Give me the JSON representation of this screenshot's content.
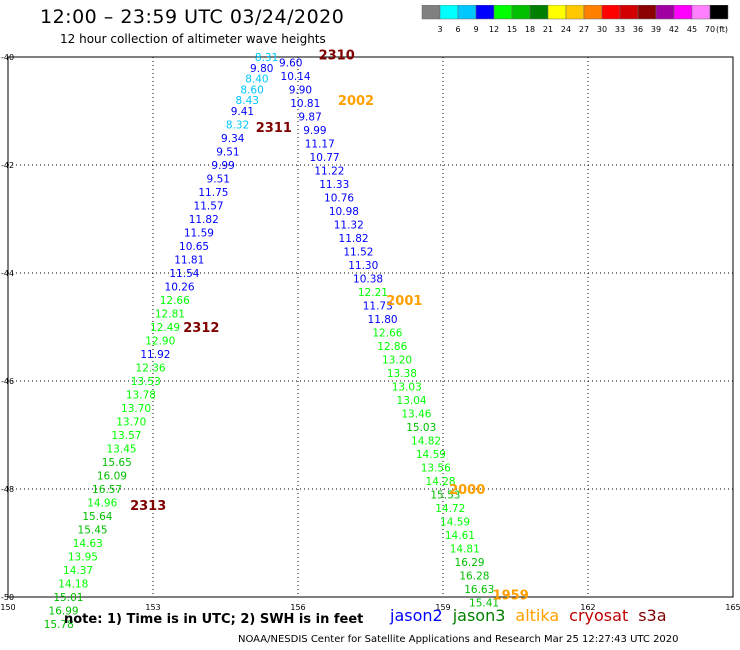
{
  "header": {
    "title": "12:00 – 23:59 UTC 03/24/2020",
    "subtitle": "12 hour collection of altimeter wave heights"
  },
  "colorbar": {
    "unit": "(ft)",
    "labels": [
      "3",
      "6",
      "9",
      "12",
      "15",
      "18",
      "21",
      "24",
      "27",
      "30",
      "33",
      "36",
      "39",
      "42",
      "45",
      "70"
    ],
    "colors": [
      "#808080",
      "#00ffff",
      "#00c8ff",
      "#0000ff",
      "#00ff00",
      "#00c000",
      "#008000",
      "#ffff00",
      "#ffc800",
      "#ff8000",
      "#ff0000",
      "#d20000",
      "#8b0000",
      "#a000a0",
      "#ff00ff",
      "#ff80ff",
      "#000000"
    ]
  },
  "note": "note: 1) Time is in UTC; 2) SWH is in feet",
  "legend": [
    {
      "label": "jason2",
      "color": "#0000ff"
    },
    {
      "label": "jason3",
      "color": "#008000"
    },
    {
      "label": "altika",
      "color": "#ffa000"
    },
    {
      "label": "cryosat",
      "color": "#c00000"
    },
    {
      "label": "s3a",
      "color": "#800000"
    }
  ],
  "footer": "NOAA/NESDIS Center for Satellite Applications and Research   Mar 25 12:27:43 UTC 2020",
  "chart_data": {
    "type": "scatter",
    "x_ticks": [
      "150",
      "153",
      "156",
      "159",
      "162",
      "165"
    ],
    "y_ticks": [
      "-40",
      "-42",
      "-44",
      "-46",
      "-48",
      "-50"
    ],
    "xlim": [
      150,
      165
    ],
    "ylim": [
      -50,
      -40
    ],
    "grid": true,
    "passes": [
      {
        "label": "2310",
        "lon": 156.8,
        "lat": -39.95,
        "color": "#800000"
      },
      {
        "label": "2002",
        "lon": 157.2,
        "lat": -40.8,
        "color": "#ffa000"
      },
      {
        "label": "2311",
        "lon": 155.5,
        "lat": -41.3,
        "color": "#800000"
      },
      {
        "label": "2001",
        "lon": 158.2,
        "lat": -44.5,
        "color": "#ffa000"
      },
      {
        "label": "2312",
        "lon": 154.0,
        "lat": -45.0,
        "color": "#800000"
      },
      {
        "label": "2000",
        "lon": 159.5,
        "lat": -48.0,
        "color": "#ffa000"
      },
      {
        "label": "2313",
        "lon": 152.9,
        "lat": -48.3,
        "color": "#800000"
      },
      {
        "label": "1959",
        "lon": 160.4,
        "lat": -49.95,
        "color": "#ffa000"
      }
    ],
    "series": [
      {
        "track": "left",
        "points": [
          {
            "lon": 155.35,
            "lat": -40.0,
            "swh": "8.31",
            "color": "#00c8ff"
          },
          {
            "lon": 155.25,
            "lat": -40.2,
            "swh": "9.80",
            "color": "#0000ff"
          },
          {
            "lon": 155.15,
            "lat": -40.4,
            "swh": "8.40",
            "color": "#00c8ff"
          },
          {
            "lon": 155.05,
            "lat": -40.6,
            "swh": "8.60",
            "color": "#00c8ff"
          },
          {
            "lon": 154.95,
            "lat": -40.8,
            "swh": "8.43",
            "color": "#00c8ff"
          },
          {
            "lon": 154.85,
            "lat": -41.0,
            "swh": "9.41",
            "color": "#0000ff"
          },
          {
            "lon": 154.75,
            "lat": -41.25,
            "swh": "8.32",
            "color": "#00c8ff"
          },
          {
            "lon": 154.65,
            "lat": -41.5,
            "swh": "9.34",
            "color": "#0000ff"
          },
          {
            "lon": 154.55,
            "lat": -41.75,
            "swh": "9.51",
            "color": "#0000ff"
          },
          {
            "lon": 154.45,
            "lat": -42.0,
            "swh": "9.99",
            "color": "#0000ff"
          },
          {
            "lon": 154.35,
            "lat": -42.25,
            "swh": "9.51",
            "color": "#0000ff"
          },
          {
            "lon": 154.25,
            "lat": -42.5,
            "swh": "11.75",
            "color": "#0000ff"
          },
          {
            "lon": 154.15,
            "lat": -42.75,
            "swh": "11.57",
            "color": "#0000ff"
          },
          {
            "lon": 154.05,
            "lat": -43.0,
            "swh": "11.82",
            "color": "#0000ff"
          },
          {
            "lon": 153.95,
            "lat": -43.25,
            "swh": "11.59",
            "color": "#0000ff"
          },
          {
            "lon": 153.85,
            "lat": -43.5,
            "swh": "10.65",
            "color": "#0000ff"
          },
          {
            "lon": 153.75,
            "lat": -43.75,
            "swh": "11.81",
            "color": "#0000ff"
          },
          {
            "lon": 153.65,
            "lat": -44.0,
            "swh": "11.54",
            "color": "#0000ff"
          },
          {
            "lon": 153.55,
            "lat": -44.25,
            "swh": "10.26",
            "color": "#0000ff"
          },
          {
            "lon": 153.45,
            "lat": -44.5,
            "swh": "12.66",
            "color": "#00ff00"
          },
          {
            "lon": 153.35,
            "lat": -44.75,
            "swh": "12.81",
            "color": "#00ff00"
          },
          {
            "lon": 153.25,
            "lat": -45.0,
            "swh": "12.49",
            "color": "#00ff00"
          },
          {
            "lon": 153.15,
            "lat": -45.25,
            "swh": "12.90",
            "color": "#00ff00"
          },
          {
            "lon": 153.05,
            "lat": -45.5,
            "swh": "11.92",
            "color": "#0000ff"
          },
          {
            "lon": 152.95,
            "lat": -45.75,
            "swh": "12.36",
            "color": "#00ff00"
          },
          {
            "lon": 152.85,
            "lat": -46.0,
            "swh": "13.53",
            "color": "#00ff00"
          },
          {
            "lon": 152.75,
            "lat": -46.25,
            "swh": "13.78",
            "color": "#00ff00"
          },
          {
            "lon": 152.65,
            "lat": -46.5,
            "swh": "13.70",
            "color": "#00ff00"
          },
          {
            "lon": 152.55,
            "lat": -46.75,
            "swh": "13.70",
            "color": "#00ff00"
          },
          {
            "lon": 152.45,
            "lat": -47.0,
            "swh": "13.57",
            "color": "#00ff00"
          },
          {
            "lon": 152.35,
            "lat": -47.25,
            "swh": "13.45",
            "color": "#00ff00"
          },
          {
            "lon": 152.25,
            "lat": -47.5,
            "swh": "15.65",
            "color": "#00c000"
          },
          {
            "lon": 152.15,
            "lat": -47.75,
            "swh": "16.09",
            "color": "#00c000"
          },
          {
            "lon": 152.05,
            "lat": -48.0,
            "swh": "16.57",
            "color": "#00c000"
          },
          {
            "lon": 151.95,
            "lat": -48.25,
            "swh": "14.96",
            "color": "#00ff00"
          },
          {
            "lon": 151.85,
            "lat": -48.5,
            "swh": "15.64",
            "color": "#00c000"
          },
          {
            "lon": 151.75,
            "lat": -48.75,
            "swh": "15.45",
            "color": "#00c000"
          },
          {
            "lon": 151.65,
            "lat": -49.0,
            "swh": "14.63",
            "color": "#00ff00"
          },
          {
            "lon": 151.55,
            "lat": -49.25,
            "swh": "13.95",
            "color": "#00ff00"
          },
          {
            "lon": 151.45,
            "lat": -49.5,
            "swh": "14.37",
            "color": "#00ff00"
          },
          {
            "lon": 151.35,
            "lat": -49.75,
            "swh": "14.18",
            "color": "#00ff00"
          },
          {
            "lon": 151.25,
            "lat": -50.0,
            "swh": "15.01",
            "color": "#00c000"
          },
          {
            "lon": 151.15,
            "lat": -50.25,
            "swh": "16.99",
            "color": "#00c000"
          },
          {
            "lon": 151.05,
            "lat": -50.5,
            "swh": "15.78",
            "color": "#00c000"
          }
        ]
      },
      {
        "track": "right",
        "points": [
          {
            "lon": 155.85,
            "lat": -40.1,
            "swh": "9.60",
            "color": "#0000ff"
          },
          {
            "lon": 155.95,
            "lat": -40.35,
            "swh": "10.14",
            "color": "#0000ff"
          },
          {
            "lon": 156.05,
            "lat": -40.6,
            "swh": "9.90",
            "color": "#0000ff"
          },
          {
            "lon": 156.15,
            "lat": -40.85,
            "swh": "10.81",
            "color": "#0000ff"
          },
          {
            "lon": 156.25,
            "lat": -41.1,
            "swh": "9.87",
            "color": "#0000ff"
          },
          {
            "lon": 156.35,
            "lat": -41.35,
            "swh": "9.99",
            "color": "#0000ff"
          },
          {
            "lon": 156.45,
            "lat": -41.6,
            "swh": "11.17",
            "color": "#0000ff"
          },
          {
            "lon": 156.55,
            "lat": -41.85,
            "swh": "10.77",
            "color": "#0000ff"
          },
          {
            "lon": 156.65,
            "lat": -42.1,
            "swh": "11.22",
            "color": "#0000ff"
          },
          {
            "lon": 156.75,
            "lat": -42.35,
            "swh": "11.33",
            "color": "#0000ff"
          },
          {
            "lon": 156.85,
            "lat": -42.6,
            "swh": "10.76",
            "color": "#0000ff"
          },
          {
            "lon": 156.95,
            "lat": -42.85,
            "swh": "10.98",
            "color": "#0000ff"
          },
          {
            "lon": 157.05,
            "lat": -43.1,
            "swh": "11.32",
            "color": "#0000ff"
          },
          {
            "lon": 157.15,
            "lat": -43.35,
            "swh": "11.82",
            "color": "#0000ff"
          },
          {
            "lon": 157.25,
            "lat": -43.6,
            "swh": "11.52",
            "color": "#0000ff"
          },
          {
            "lon": 157.35,
            "lat": -43.85,
            "swh": "11.30",
            "color": "#0000ff"
          },
          {
            "lon": 157.45,
            "lat": -44.1,
            "swh": "10.38",
            "color": "#0000ff"
          },
          {
            "lon": 157.55,
            "lat": -44.35,
            "swh": "12.21",
            "color": "#00ff00"
          },
          {
            "lon": 157.65,
            "lat": -44.6,
            "swh": "11.73",
            "color": "#0000ff"
          },
          {
            "lon": 157.75,
            "lat": -44.85,
            "swh": "11.80",
            "color": "#0000ff"
          },
          {
            "lon": 157.85,
            "lat": -45.1,
            "swh": "12.66",
            "color": "#00ff00"
          },
          {
            "lon": 157.95,
            "lat": -45.35,
            "swh": "12.86",
            "color": "#00ff00"
          },
          {
            "lon": 158.05,
            "lat": -45.6,
            "swh": "13.20",
            "color": "#00ff00"
          },
          {
            "lon": 158.15,
            "lat": -45.85,
            "swh": "13.38",
            "color": "#00ff00"
          },
          {
            "lon": 158.25,
            "lat": -46.1,
            "swh": "13.03",
            "color": "#00ff00"
          },
          {
            "lon": 158.35,
            "lat": -46.35,
            "swh": "13.04",
            "color": "#00ff00"
          },
          {
            "lon": 158.45,
            "lat": -46.6,
            "swh": "13.46",
            "color": "#00ff00"
          },
          {
            "lon": 158.55,
            "lat": -46.85,
            "swh": "15.03",
            "color": "#00c000"
          },
          {
            "lon": 158.65,
            "lat": -47.1,
            "swh": "14.82",
            "color": "#00ff00"
          },
          {
            "lon": 158.75,
            "lat": -47.35,
            "swh": "14.59",
            "color": "#00ff00"
          },
          {
            "lon": 158.85,
            "lat": -47.6,
            "swh": "13.56",
            "color": "#00ff00"
          },
          {
            "lon": 158.95,
            "lat": -47.85,
            "swh": "14.28",
            "color": "#00ff00"
          },
          {
            "lon": 159.05,
            "lat": -48.1,
            "swh": "15.53",
            "color": "#00c000"
          },
          {
            "lon": 159.15,
            "lat": -48.35,
            "swh": "14.72",
            "color": "#00ff00"
          },
          {
            "lon": 159.25,
            "lat": -48.6,
            "swh": "14.59",
            "color": "#00ff00"
          },
          {
            "lon": 159.35,
            "lat": -48.85,
            "swh": "14.61",
            "color": "#00ff00"
          },
          {
            "lon": 159.45,
            "lat": -49.1,
            "swh": "14.81",
            "color": "#00ff00"
          },
          {
            "lon": 159.55,
            "lat": -49.35,
            "swh": "16.29",
            "color": "#00c000"
          },
          {
            "lon": 159.65,
            "lat": -49.6,
            "swh": "16.28",
            "color": "#00c000"
          },
          {
            "lon": 159.75,
            "lat": -49.85,
            "swh": "16.63",
            "color": "#00c000"
          },
          {
            "lon": 159.85,
            "lat": -50.1,
            "swh": "15.41",
            "color": "#00c000"
          }
        ]
      }
    ]
  }
}
